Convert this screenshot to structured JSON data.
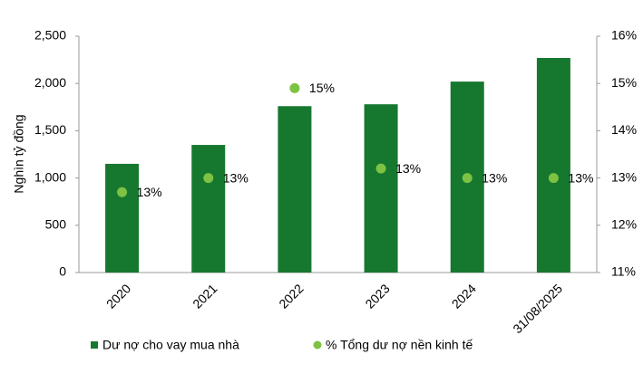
{
  "chart_data": {
    "type": "bar",
    "y_label": "Nghìn tỷ đồng",
    "categories": [
      "2020",
      "2021",
      "2022",
      "2023",
      "2024",
      "31/08/2025"
    ],
    "series": [
      {
        "name": "Dư nợ cho vay mua nhà",
        "type": "bar",
        "color": "#16782f",
        "values": [
          1150,
          1350,
          1760,
          1780,
          2020,
          2270
        ]
      },
      {
        "name": "% Tổng dư nợ nền kinh tế",
        "type": "scatter",
        "axis": "y2",
        "color": "#7dc242",
        "values": [
          12.7,
          13.0,
          14.9,
          13.2,
          13.0,
          13.0
        ],
        "value_labels": [
          "13%",
          "13%",
          "15%",
          "13%",
          "13%",
          "13%"
        ]
      }
    ],
    "ylim": [
      0,
      2500
    ],
    "yticks": [
      0,
      500,
      {
        "value": 1000,
        "label": "1,000"
      },
      {
        "value": 1500,
        "label": "1,500"
      },
      {
        "value": 2000,
        "label": "2,000"
      },
      {
        "value": 2500,
        "label": "2,500"
      }
    ],
    "y2lim": [
      11,
      16
    ],
    "y2ticks": [
      {
        "value": 11,
        "label": "11%"
      },
      {
        "value": 12,
        "label": "12%"
      },
      {
        "value": 13,
        "label": "13%"
      },
      {
        "value": 14,
        "label": "14%"
      },
      {
        "value": 15,
        "label": "15%"
      },
      {
        "value": 16,
        "label": "16%"
      }
    ],
    "legend": "bottom"
  }
}
